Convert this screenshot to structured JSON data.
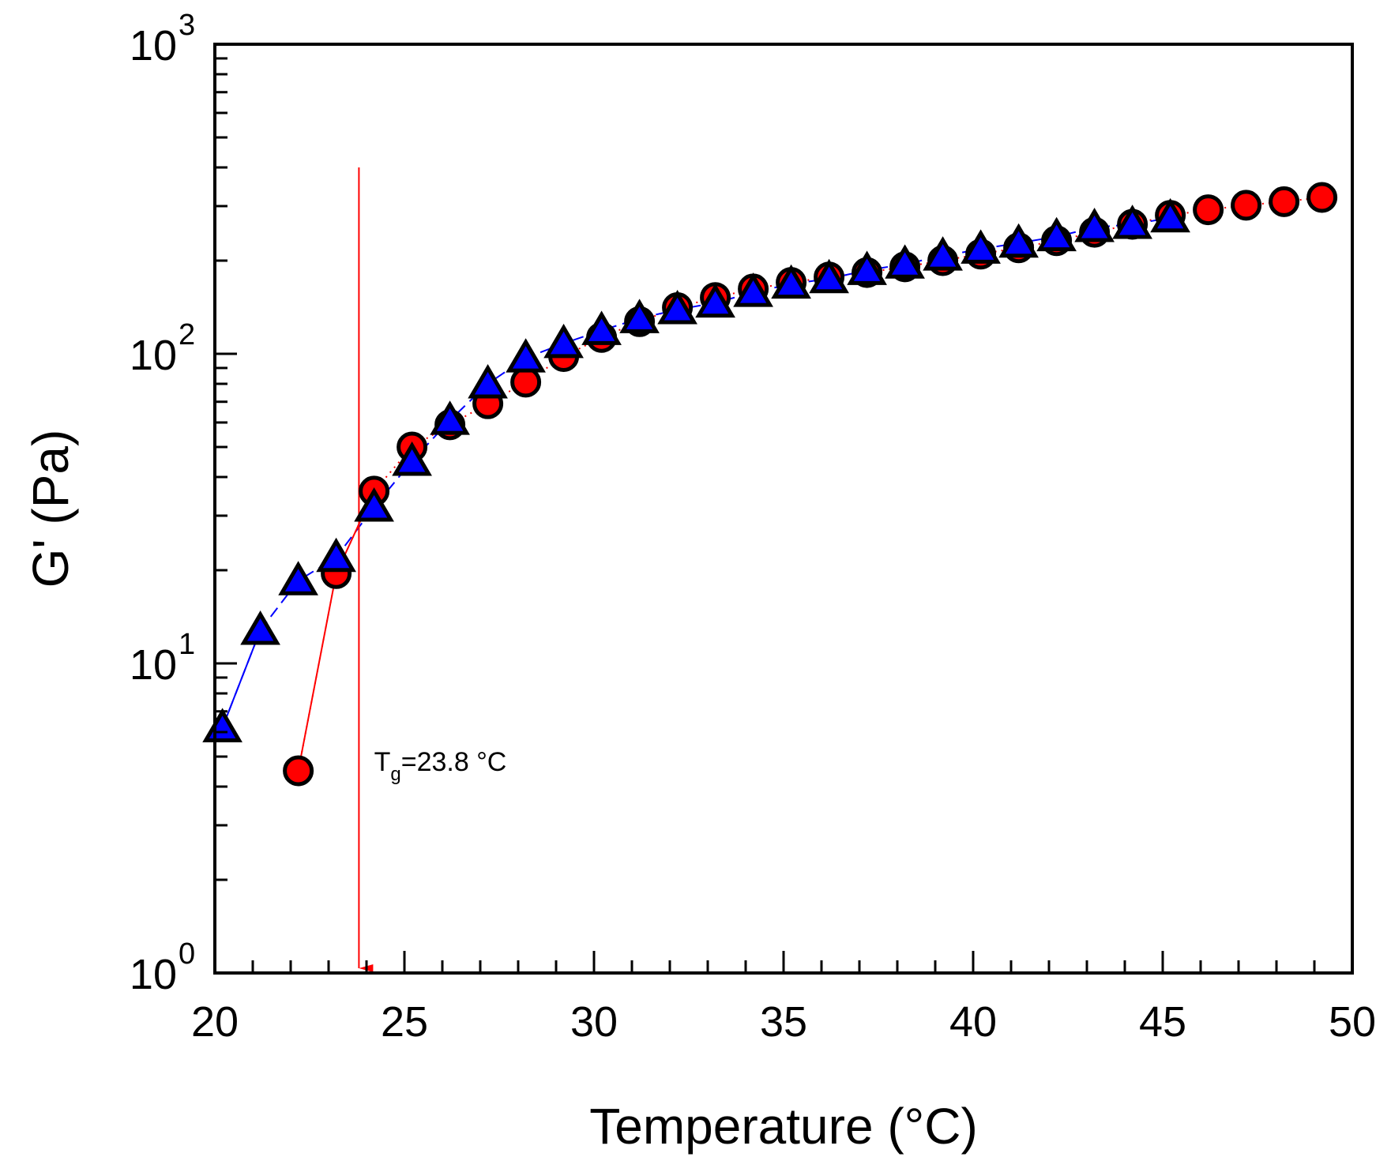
{
  "chart_data": {
    "type": "scatter",
    "title": "",
    "xlabel": "Temperature (°C)",
    "ylabel": "G' (Pa)",
    "xlim": [
      20,
      50
    ],
    "ylim": [
      1,
      1000
    ],
    "yscale": "log",
    "grid": false,
    "x_ticks": [
      20,
      25,
      30,
      35,
      40,
      45,
      50
    ],
    "x_tick_labels": [
      "20",
      "25",
      "30",
      "35",
      "40",
      "45",
      "50"
    ],
    "y_ticks": [
      1,
      10,
      100,
      1000
    ],
    "y_tick_base": "10",
    "y_tick_exponents": [
      "0",
      "1",
      "2",
      "3"
    ],
    "series": [
      {
        "name": "circles",
        "marker": "circle",
        "color": "#ff0000",
        "line_style": "dotted",
        "x": [
          22.2,
          23.2,
          24.2,
          25.2,
          26.2,
          27.2,
          28.2,
          29.2,
          30.2,
          31.2,
          32.2,
          33.2,
          34.2,
          35.2,
          36.2,
          37.2,
          38.2,
          39.2,
          40.2,
          41.2,
          42.2,
          43.2,
          44.2,
          45.2,
          46.2,
          47.2,
          48.2,
          49.2
        ],
        "y": [
          4.5,
          19.5,
          36,
          50,
          59,
          69,
          81,
          98,
          113,
          127,
          141,
          152,
          162,
          170,
          177,
          183,
          191,
          200,
          210,
          220,
          232,
          247,
          262,
          280,
          292,
          302,
          310,
          320
        ]
      },
      {
        "name": "triangles",
        "marker": "triangle",
        "color": "#0000ff",
        "line_style": "dashed",
        "x": [
          20.2,
          21.2,
          22.2,
          23.2,
          24.2,
          25.2,
          26.2,
          27.2,
          28.2,
          29.2,
          30.2,
          31.2,
          32.2,
          33.2,
          34.2,
          35.2,
          36.2,
          37.2,
          38.2,
          39.2,
          40.2,
          41.2,
          42.2,
          43.2,
          44.2,
          45.2
        ],
        "y": [
          6.2,
          12.8,
          18.5,
          22,
          32,
          45,
          61,
          80,
          97,
          108,
          119,
          130,
          139,
          146,
          158,
          168,
          175,
          186,
          195,
          207,
          218,
          228,
          239,
          256,
          262,
          275
        ]
      }
    ],
    "annotations": [
      {
        "kind": "arrow",
        "x": 23.8,
        "y_from": 400,
        "y_to": 1,
        "color": "#ff0000"
      },
      {
        "kind": "text",
        "main": "T",
        "sub": "g",
        "rest": "=23.8 °C",
        "x": 24.2,
        "y": 4.5
      }
    ]
  }
}
